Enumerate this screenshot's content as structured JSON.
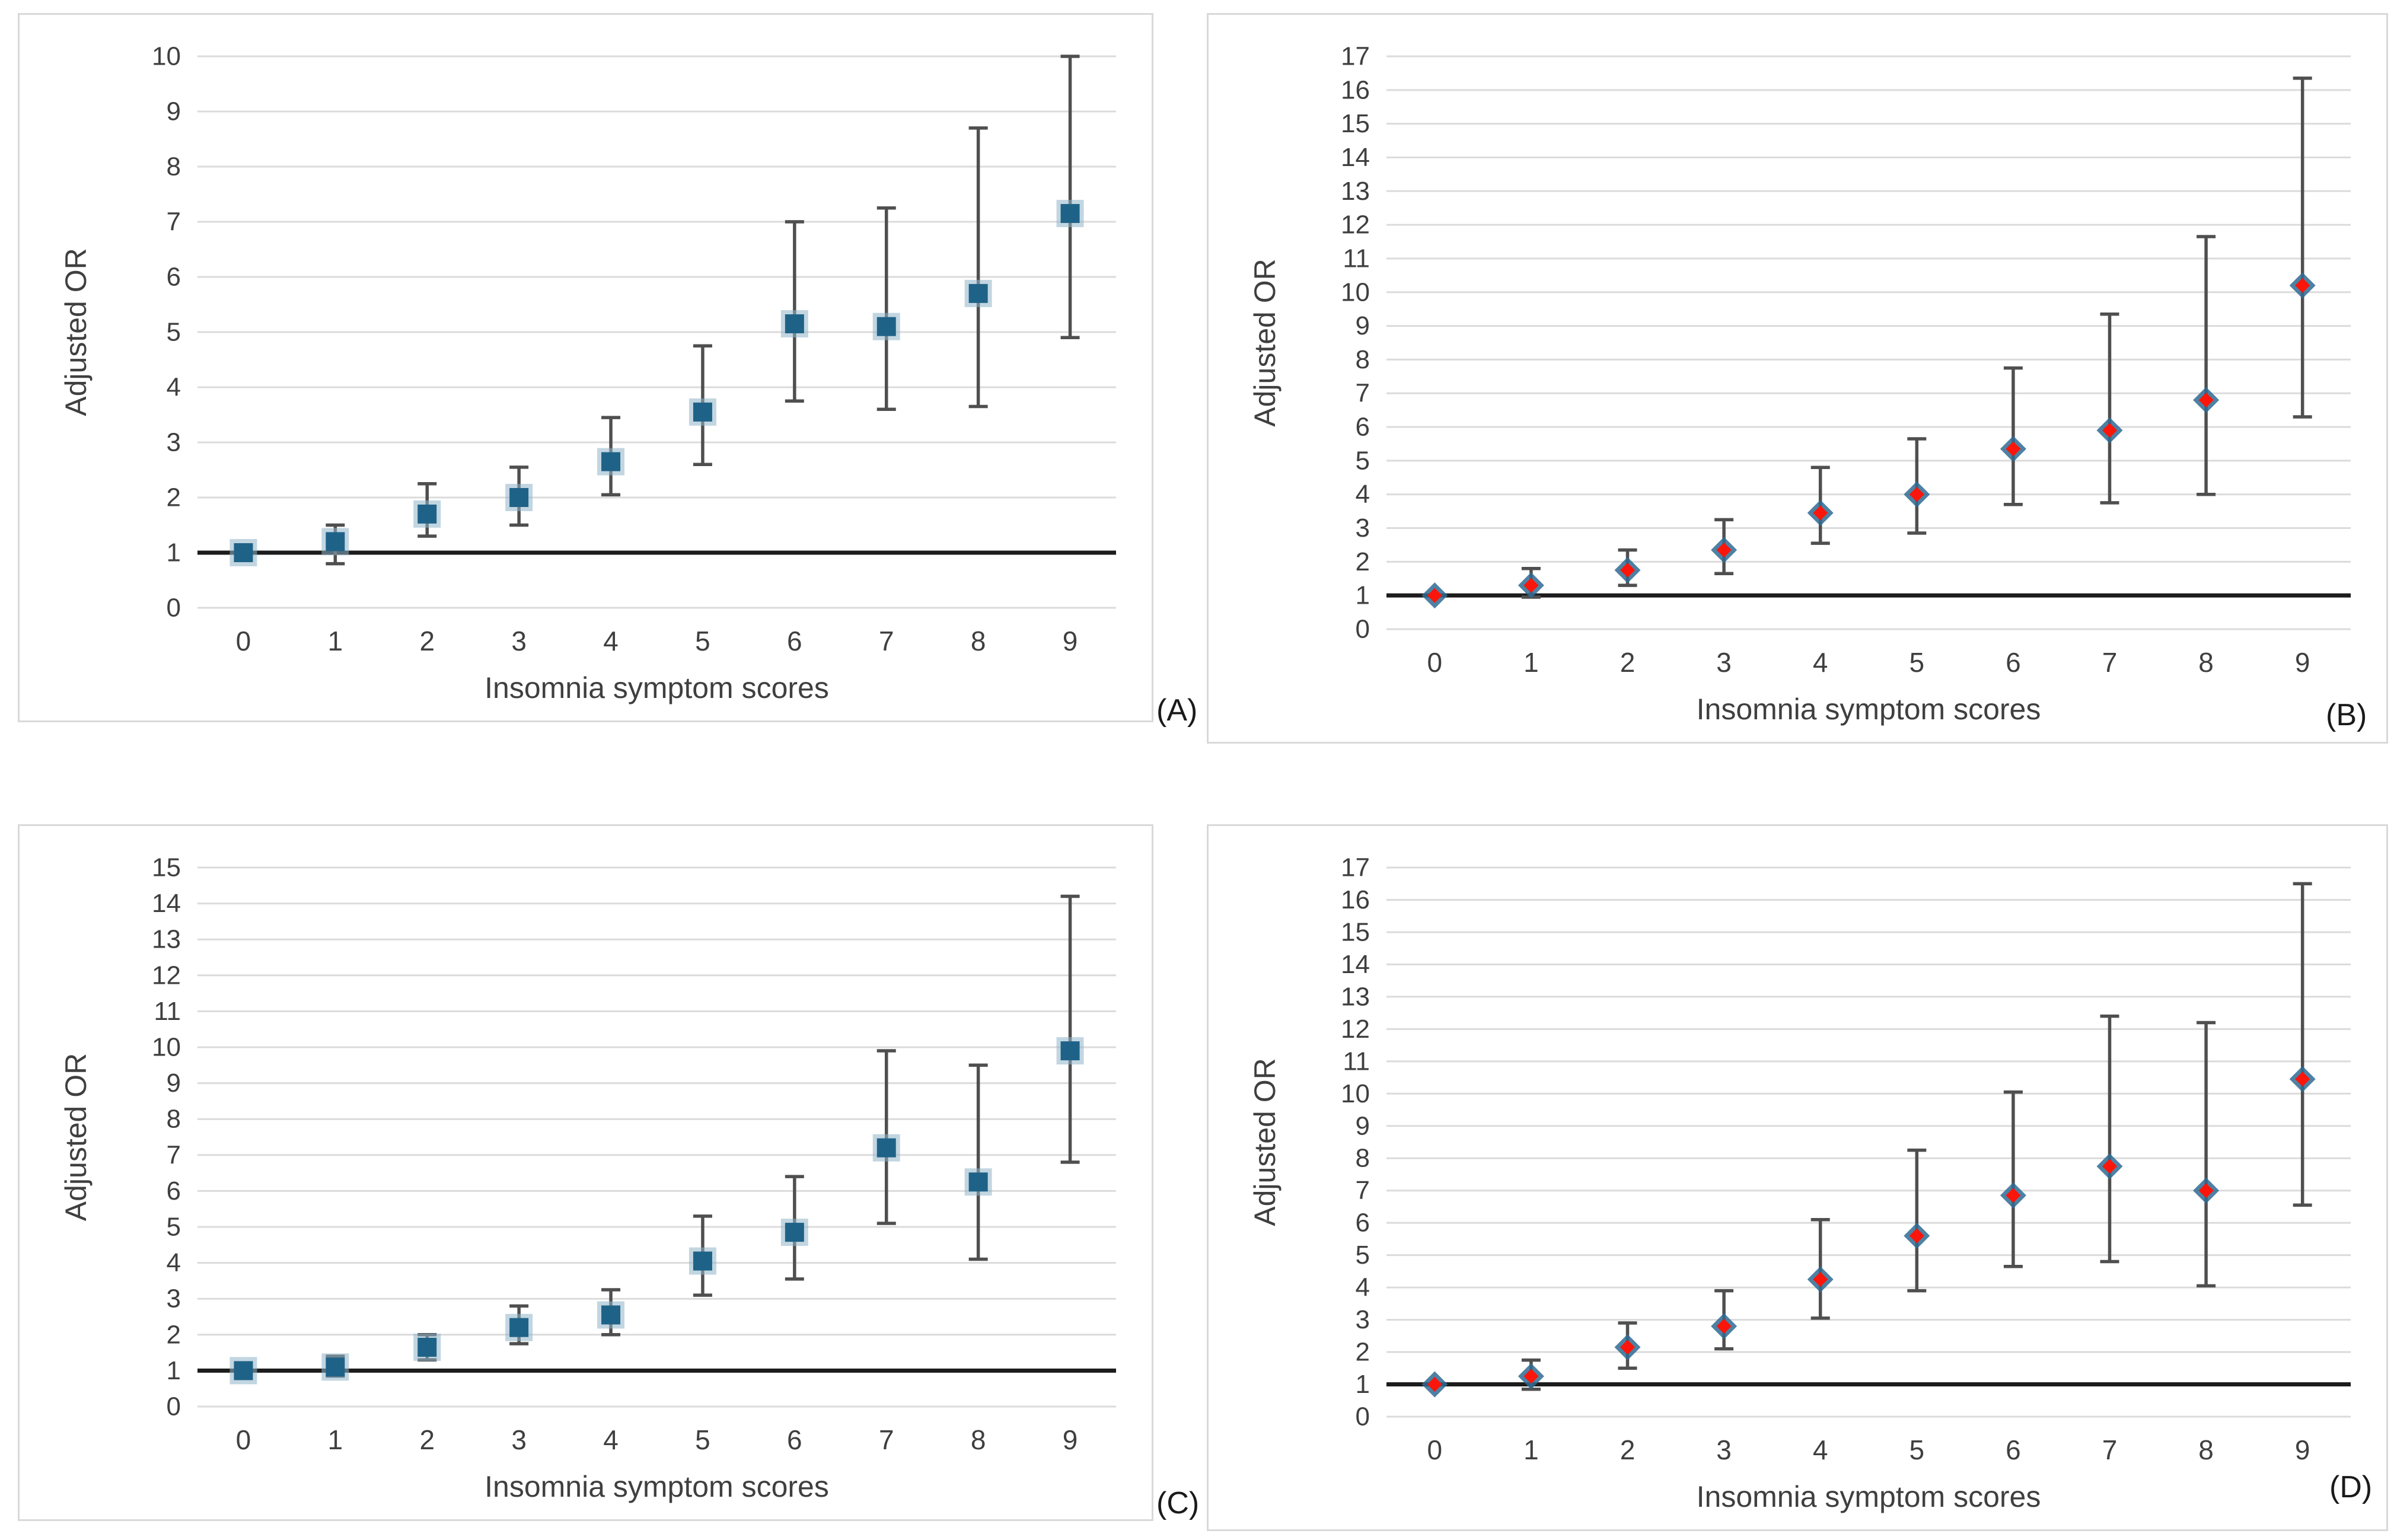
{
  "figure_title": "",
  "colors": {
    "square_fill": "#1F6288",
    "square_halo": "#8FB4C9",
    "diamond_fill": "#FB150A",
    "diamond_halo": "#2F6B93",
    "errorbar": "#4F4F4F",
    "gridline": "#DBDBDB",
    "refline": "#1C1C1C",
    "axis_text": "#3F3F3F",
    "panel_border": "#D9D9D9",
    "caption_text": "#1a1a1a"
  },
  "chart_data": [
    {
      "type": "scatter",
      "panel_label": "(A)",
      "marker": "square",
      "ylabel": "Adjusted OR",
      "xlabel": "Insomnia symptom scores",
      "ymin": 0,
      "ymax": 10,
      "ystep": 1,
      "grid": "horizontal",
      "reference_line_y": 1,
      "categories": [
        "0",
        "1",
        "2",
        "3",
        "4",
        "5",
        "6",
        "7",
        "8",
        "9"
      ],
      "points": [
        {
          "or": 1.0,
          "lo": 1.0,
          "hi": 1.0
        },
        {
          "or": 1.2,
          "lo": 0.8,
          "hi": 1.5
        },
        {
          "or": 1.7,
          "lo": 1.3,
          "hi": 2.25
        },
        {
          "or": 2.0,
          "lo": 1.5,
          "hi": 2.55
        },
        {
          "or": 2.65,
          "lo": 2.05,
          "hi": 3.45
        },
        {
          "or": 3.55,
          "lo": 2.6,
          "hi": 4.75
        },
        {
          "or": 5.15,
          "lo": 3.75,
          "hi": 7.0
        },
        {
          "or": 5.1,
          "lo": 3.6,
          "hi": 7.25
        },
        {
          "or": 5.7,
          "lo": 3.65,
          "hi": 8.7
        },
        {
          "or": 7.15,
          "lo": 4.9,
          "hi": 10.0
        }
      ]
    },
    {
      "type": "scatter",
      "panel_label": "(B)",
      "marker": "diamond",
      "ylabel": "Adjusted OR",
      "xlabel": "Insomnia symptom scores",
      "ymin": 0,
      "ymax": 17,
      "ystep": 1,
      "grid": "horizontal",
      "reference_line_y": 1,
      "categories": [
        "0",
        "1",
        "2",
        "3",
        "4",
        "5",
        "6",
        "7",
        "8",
        "9"
      ],
      "points": [
        {
          "or": 1.0,
          "lo": 1.0,
          "hi": 1.0
        },
        {
          "or": 1.3,
          "lo": 0.95,
          "hi": 1.8
        },
        {
          "or": 1.75,
          "lo": 1.3,
          "hi": 2.35
        },
        {
          "or": 2.35,
          "lo": 1.65,
          "hi": 3.25
        },
        {
          "or": 3.45,
          "lo": 2.55,
          "hi": 4.8
        },
        {
          "or": 4.0,
          "lo": 2.85,
          "hi": 5.65
        },
        {
          "or": 5.35,
          "lo": 3.7,
          "hi": 7.75
        },
        {
          "or": 5.9,
          "lo": 3.75,
          "hi": 9.35
        },
        {
          "or": 6.8,
          "lo": 4.0,
          "hi": 11.65
        },
        {
          "or": 10.2,
          "lo": 6.3,
          "hi": 16.35
        }
      ]
    },
    {
      "type": "scatter",
      "panel_label": "(C)",
      "marker": "square",
      "ylabel": "Adjusted OR",
      "xlabel": "Insomnia symptom scores",
      "ymin": 0,
      "ymax": 15,
      "ystep": 1,
      "grid": "horizontal",
      "reference_line_y": 1,
      "categories": [
        "0",
        "1",
        "2",
        "3",
        "4",
        "5",
        "6",
        "7",
        "8",
        "9"
      ],
      "points": [
        {
          "or": 1.0,
          "lo": 1.0,
          "hi": 1.0
        },
        {
          "or": 1.1,
          "lo": 0.85,
          "hi": 1.4
        },
        {
          "or": 1.65,
          "lo": 1.3,
          "hi": 2.0
        },
        {
          "or": 2.2,
          "lo": 1.75,
          "hi": 2.8
        },
        {
          "or": 2.55,
          "lo": 2.0,
          "hi": 3.25
        },
        {
          "or": 4.05,
          "lo": 3.1,
          "hi": 5.3
        },
        {
          "or": 4.85,
          "lo": 3.55,
          "hi": 6.4
        },
        {
          "or": 7.2,
          "lo": 5.1,
          "hi": 9.9
        },
        {
          "or": 6.25,
          "lo": 4.1,
          "hi": 9.5
        },
        {
          "or": 9.9,
          "lo": 6.8,
          "hi": 14.2
        }
      ]
    },
    {
      "type": "scatter",
      "panel_label": "(D)",
      "marker": "diamond",
      "ylabel": "Adjusted OR",
      "xlabel": "Insomnia symptom scores",
      "ymin": 0,
      "ymax": 17,
      "ystep": 1,
      "grid": "horizontal",
      "reference_line_y": 1,
      "categories": [
        "0",
        "1",
        "2",
        "3",
        "4",
        "5",
        "6",
        "7",
        "8",
        "9"
      ],
      "points": [
        {
          "or": 1.0,
          "lo": 1.0,
          "hi": 1.0
        },
        {
          "or": 1.25,
          "lo": 0.85,
          "hi": 1.75
        },
        {
          "or": 2.15,
          "lo": 1.5,
          "hi": 2.9
        },
        {
          "or": 2.8,
          "lo": 2.1,
          "hi": 3.9
        },
        {
          "or": 4.25,
          "lo": 3.05,
          "hi": 6.1
        },
        {
          "or": 5.6,
          "lo": 3.9,
          "hi": 8.25
        },
        {
          "or": 6.85,
          "lo": 4.65,
          "hi": 10.05
        },
        {
          "or": 7.75,
          "lo": 4.8,
          "hi": 12.4
        },
        {
          "or": 7.0,
          "lo": 4.05,
          "hi": 12.2
        },
        {
          "or": 10.45,
          "lo": 6.55,
          "hi": 16.5
        }
      ]
    }
  ]
}
